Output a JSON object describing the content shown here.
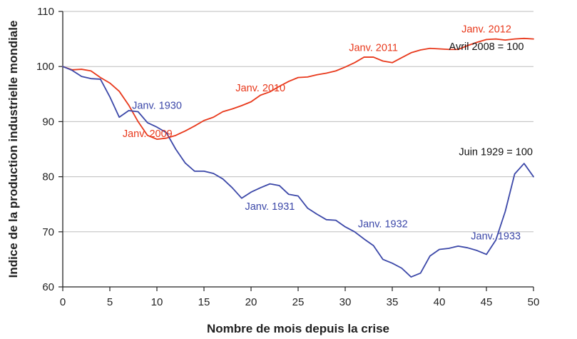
{
  "chart_data": {
    "type": "line",
    "title": "",
    "xlabel": "Nombre de mois depuis la crise",
    "ylabel": "Indice de la production industrielle mondiale",
    "xlim": [
      0,
      50
    ],
    "ylim": [
      60,
      110
    ],
    "x_ticks": [
      0,
      5,
      10,
      15,
      20,
      25,
      30,
      35,
      40,
      45,
      50
    ],
    "y_ticks": [
      60,
      70,
      80,
      90,
      100,
      110
    ],
    "grid": "horizontal",
    "series": [
      {
        "name": "Avril 2008 = 100",
        "color": "#e8381b",
        "x": [
          0,
          1,
          2,
          3,
          4,
          5,
          6,
          7,
          8,
          9,
          10,
          11,
          12,
          13,
          14,
          15,
          16,
          17,
          18,
          19,
          20,
          21,
          22,
          23,
          24,
          25,
          26,
          27,
          28,
          29,
          30,
          31,
          32,
          33,
          34,
          35,
          36,
          37,
          38,
          39,
          40,
          41,
          42,
          43,
          44,
          45,
          46,
          47,
          48,
          49,
          50
        ],
        "values": [
          100,
          99.4,
          99.5,
          99.2,
          98.0,
          97.0,
          95.5,
          93.0,
          90.0,
          87.5,
          86.8,
          87.0,
          87.5,
          88.3,
          89.2,
          90.2,
          90.8,
          91.8,
          92.3,
          92.9,
          93.6,
          94.8,
          95.4,
          96.4,
          97.3,
          98.0,
          98.1,
          98.5,
          98.8,
          99.2,
          99.9,
          100.7,
          101.7,
          101.7,
          101.0,
          100.7,
          101.6,
          102.5,
          103.0,
          103.3,
          103.2,
          103.1,
          103.1,
          103.8,
          104.4,
          104.9,
          105.0,
          104.8,
          105.0,
          105.1,
          105.0
        ]
      },
      {
        "name": "Juin 1929 = 100",
        "color": "#3b47a8",
        "x": [
          0,
          1,
          2,
          3,
          4,
          5,
          6,
          7,
          8,
          9,
          10,
          11,
          12,
          13,
          14,
          15,
          16,
          17,
          18,
          19,
          20,
          21,
          22,
          23,
          24,
          25,
          26,
          27,
          28,
          29,
          30,
          31,
          32,
          33,
          34,
          35,
          36,
          37,
          38,
          39,
          40,
          41,
          42,
          43,
          44,
          45,
          46,
          47,
          48,
          49,
          50
        ],
        "values": [
          100,
          99.3,
          98.2,
          97.8,
          97.7,
          94.5,
          90.8,
          92.0,
          91.8,
          89.8,
          89.0,
          88.0,
          85.0,
          82.5,
          81.0,
          81.0,
          80.6,
          79.6,
          78.0,
          76.1,
          77.2,
          78.0,
          78.7,
          78.4,
          76.8,
          76.5,
          74.3,
          73.2,
          72.2,
          72.1,
          70.9,
          70.0,
          68.7,
          67.5,
          65.0,
          64.3,
          63.4,
          61.8,
          62.5,
          65.6,
          66.8,
          67.0,
          67.4,
          67.1,
          66.6,
          65.9,
          68.5,
          73.7,
          80.5,
          82.4,
          80.0
        ]
      }
    ],
    "annotations": [
      {
        "text": "Janv. 2009",
        "series": 0,
        "x": 9,
        "y": 87.2
      },
      {
        "text": "Janv. 2010",
        "series": 0,
        "x": 21,
        "y": 95.5
      },
      {
        "text": "Janv. 2011",
        "series": 0,
        "x": 33,
        "y": 102.8
      },
      {
        "text": "Janv. 2012",
        "series": 0,
        "x": 45,
        "y": 106.2
      },
      {
        "text": "Avril 2008 = 100",
        "series": 0,
        "x": 45,
        "y": 103.0
      },
      {
        "text": "Janv. 1930",
        "series": 1,
        "x": 10,
        "y": 92.3
      },
      {
        "text": "Janv. 1931",
        "series": 1,
        "x": 22,
        "y": 74.0
      },
      {
        "text": "Janv. 1932",
        "series": 1,
        "x": 34,
        "y": 70.8
      },
      {
        "text": "Janv. 1933",
        "series": 1,
        "x": 46,
        "y": 68.6
      },
      {
        "text": "Juin 1929 = 100",
        "series": 1,
        "x": 46,
        "y": 83.9
      }
    ]
  }
}
